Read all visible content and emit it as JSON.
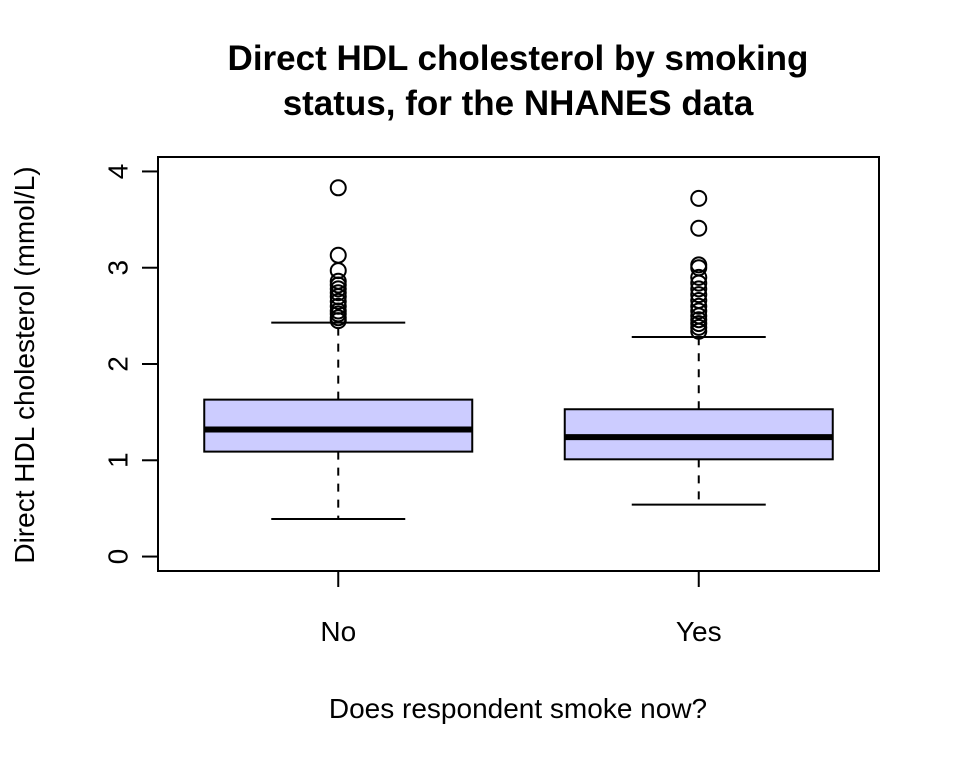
{
  "chart_data": {
    "type": "boxplot",
    "title_lines": [
      "Direct HDL cholesterol by smoking",
      "status, for the NHANES data"
    ],
    "xlabel": "Does respondent smoke now?",
    "ylabel": "Direct HDL cholesterol (mmol/L)",
    "ylim": [
      -0.15,
      4.15
    ],
    "yticks": [
      "0",
      "1",
      "2",
      "3",
      "4"
    ],
    "box_color": "#ccccff",
    "categories": [
      "No",
      "Yes"
    ],
    "boxes": [
      {
        "category": "No",
        "whisker_low": 0.39,
        "q1": 1.09,
        "median": 1.32,
        "q3": 1.63,
        "whisker_high": 2.43,
        "outliers": [
          2.45,
          2.48,
          2.52,
          2.55,
          2.6,
          2.65,
          2.7,
          2.74,
          2.78,
          2.82,
          2.86,
          2.97,
          3.13,
          3.83
        ]
      },
      {
        "category": "Yes",
        "whisker_low": 0.54,
        "q1": 1.01,
        "median": 1.24,
        "q3": 1.53,
        "whisker_high": 2.28,
        "outliers": [
          2.34,
          2.38,
          2.42,
          2.46,
          2.5,
          2.55,
          2.6,
          2.66,
          2.72,
          2.78,
          2.84,
          2.9,
          3.0,
          3.03,
          3.41,
          3.72
        ]
      }
    ]
  }
}
